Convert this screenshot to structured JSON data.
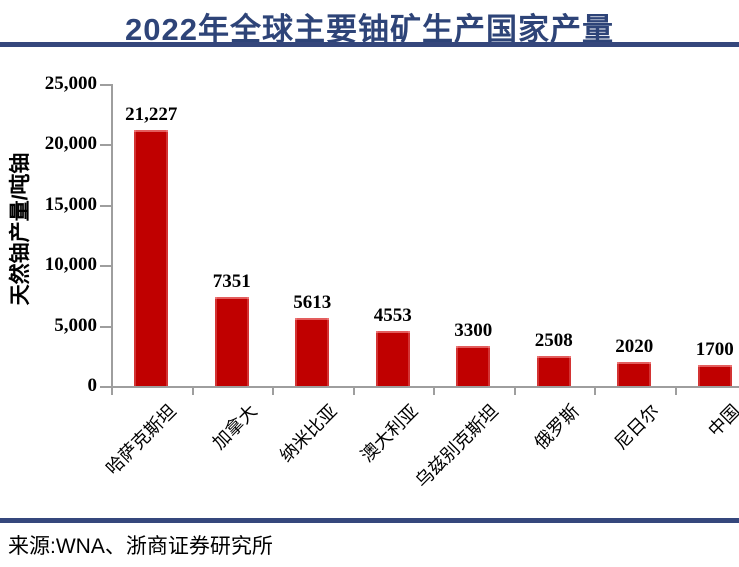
{
  "header": {
    "title": "2022年全球主要铀矿生产国家产量"
  },
  "footer": {
    "source": "来源:WNA、浙商证券研究所"
  },
  "colors": {
    "bar": "#c00000",
    "accent_blue": "#35477c",
    "title_blue": "#2e4478",
    "axis_gray": "#9e9e9e"
  },
  "chart_data": {
    "type": "bar",
    "title": "2022年全球主要铀矿生产国家产量",
    "categories": [
      "哈萨克斯坦",
      "加拿大",
      "纳米比亚",
      "澳大利亚",
      "乌兹别克斯坦",
      "俄罗斯",
      "尼日尔",
      "中国"
    ],
    "values": [
      21227,
      7351,
      5613,
      4553,
      3300,
      2508,
      2020,
      1700
    ],
    "value_labels": [
      "21,227",
      "7351",
      "5613",
      "4553",
      "3300",
      "2508",
      "2020",
      "1700"
    ],
    "xlabel": "",
    "ylabel": "天然铀产量/吨铀",
    "ylim": [
      0,
      25000
    ],
    "ytick_step": 5000,
    "ytick_labels": [
      "0",
      "5,000",
      "10,000",
      "15,000",
      "20,000",
      "25,000"
    ],
    "grid": false,
    "legend": null,
    "bar_color": "#c00000"
  }
}
